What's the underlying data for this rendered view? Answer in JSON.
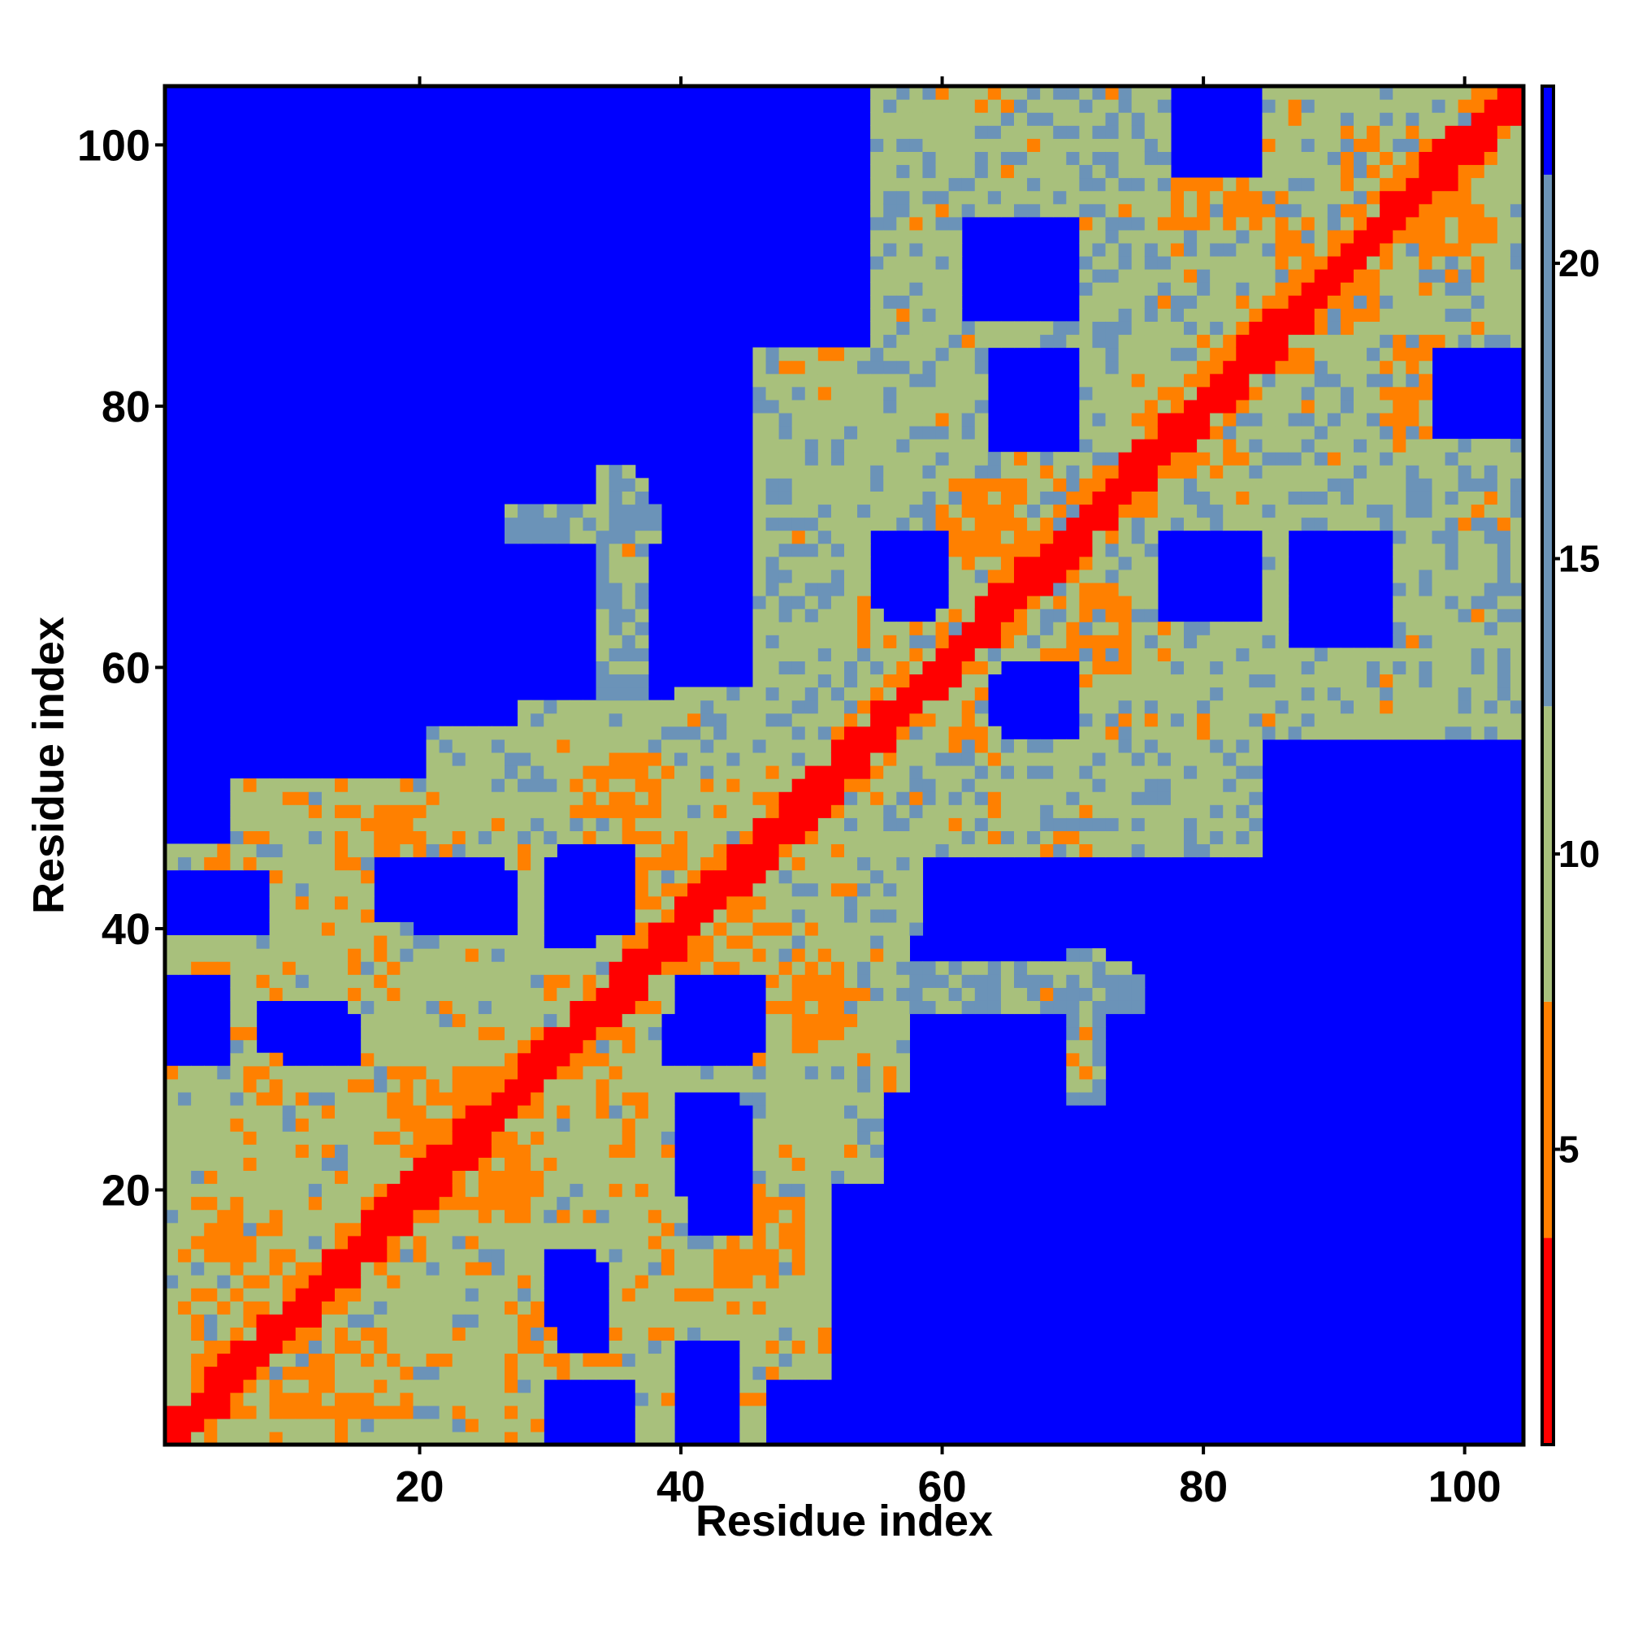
{
  "chart_data": {
    "type": "heatmap",
    "title": "",
    "xlabel": "Residue index",
    "ylabel": "Residue index",
    "n_residues": 104,
    "xlim": [
      1,
      104
    ],
    "ylim": [
      1,
      104
    ],
    "x_ticks": [
      20,
      40,
      60,
      80,
      100
    ],
    "y_ticks": [
      20,
      40,
      60,
      80,
      100
    ],
    "colorbar": {
      "range": [
        0,
        23
      ],
      "ticks": [
        5,
        10,
        15,
        20
      ],
      "bands": [
        {
          "from": 0,
          "to": 3.5,
          "color": "#ff0000"
        },
        {
          "from": 3.5,
          "to": 7.5,
          "color": "#ff8000"
        },
        {
          "from": 7.5,
          "to": 12.5,
          "color": "#a8c07c"
        },
        {
          "from": 12.5,
          "to": 21.5,
          "color": "#6b93b8"
        },
        {
          "from": 21.5,
          "to": 23,
          "color": "#0000ff"
        }
      ]
    },
    "background_color": "#0000ff",
    "diagonal_color": "#ff0000",
    "contact_regions": [
      {
        "x": [
          1,
          52
        ],
        "y": [
          1,
          50
        ],
        "value": 10
      },
      {
        "x": [
          1,
          52
        ],
        "y": [
          1,
          52
        ],
        "value": 11
      },
      {
        "x": [
          1,
          28
        ],
        "y": [
          1,
          55
        ],
        "value": 11
      },
      {
        "x": [
          28,
          58
        ],
        "y": [
          40,
          57
        ],
        "value": 11
      },
      {
        "x": [
          52,
          84
        ],
        "y": [
          46,
          84
        ],
        "value": 11
      },
      {
        "x": [
          67,
          104
        ],
        "y": [
          67,
          104
        ],
        "value": 11
      },
      {
        "x": [
          78,
          104
        ],
        "y": [
          55,
          85
        ],
        "value": 11
      },
      {
        "x": [
          59,
          68
        ],
        "y": [
          80,
          85
        ],
        "value": 12
      },
      {
        "x": [
          58,
          64
        ],
        "y": [
          88,
          100
        ],
        "value": 13
      },
      {
        "x": [
          34,
          37
        ],
        "y": [
          55,
          74
        ],
        "value": 13
      },
      {
        "x": [
          54,
          75
        ],
        "y": [
          34,
          36
        ],
        "value": 13
      },
      {
        "x": [
          70,
          72
        ],
        "y": [
          27,
          38
        ],
        "value": 13
      },
      {
        "x": [
          90,
          99
        ],
        "y": [
          60,
          66
        ],
        "value": 13
      }
    ],
    "contact_holes": [
      {
        "x": [
          1,
          5
        ],
        "y": [
          40,
          44
        ]
      },
      {
        "x": [
          10,
          15
        ],
        "y": [
          30,
          33
        ]
      },
      {
        "x": [
          20,
          27
        ],
        "y": [
          40,
          44
        ]
      },
      {
        "x": [
          31,
          36
        ],
        "y": [
          40,
          46
        ]
      },
      {
        "x": [
          39,
          45
        ],
        "y": [
          30,
          33
        ]
      },
      {
        "x": [
          41,
          45
        ],
        "y": [
          17,
          26
        ]
      },
      {
        "x": [
          31,
          34
        ],
        "y": [
          8,
          14
        ]
      },
      {
        "x": [
          40,
          44
        ],
        "y": [
          1,
          8
        ]
      },
      {
        "x": [
          30,
          36
        ],
        "y": [
          1,
          5
        ]
      },
      {
        "x": [
          55,
          60
        ],
        "y": [
          65,
          70
        ]
      },
      {
        "x": [
          64,
          70
        ],
        "y": [
          77,
          84
        ]
      },
      {
        "x": [
          87,
          94
        ],
        "y": [
          62,
          70
        ]
      },
      {
        "x": [
          64,
          68
        ],
        "y": [
          56,
          59
        ]
      },
      {
        "x": [
          52,
          56
        ],
        "y": [
          1,
          20
        ]
      },
      {
        "x": [
          1,
          5
        ],
        "y": [
          47,
          55
        ]
      },
      {
        "x": [
          98,
          104
        ],
        "y": [
          78,
          84
        ]
      }
    ],
    "close_contacts": [
      {
        "x": [
          3,
          9
        ],
        "y": [
          5,
          19
        ],
        "value": 6
      },
      {
        "x": [
          14,
          20
        ],
        "y": [
          43,
          49
        ],
        "value": 6
      },
      {
        "x": [
          18,
          24
        ],
        "y": [
          26,
          29
        ],
        "value": 6
      },
      {
        "x": [
          24,
          28
        ],
        "y": [
          18,
          24
        ],
        "value": 6
      },
      {
        "x": [
          28,
          32
        ],
        "y": [
          7,
          10
        ],
        "value": 6
      },
      {
        "x": [
          32,
          37
        ],
        "y": [
          49,
          53
        ],
        "value": 6
      },
      {
        "x": [
          37,
          42
        ],
        "y": [
          42,
          46
        ],
        "value": 6
      },
      {
        "x": [
          44,
          49
        ],
        "y": [
          16,
          19
        ],
        "value": 6
      },
      {
        "x": [
          47,
          53
        ],
        "y": [
          33,
          38
        ],
        "value": 6
      },
      {
        "x": [
          54,
          57
        ],
        "y": [
          61,
          64
        ],
        "value": 6
      },
      {
        "x": [
          61,
          65
        ],
        "y": [
          70,
          74
        ],
        "value": 6
      },
      {
        "x": [
          62,
          65
        ],
        "y": [
          54,
          58
        ],
        "value": 6
      },
      {
        "x": [
          69,
          74
        ],
        "y": [
          60,
          66
        ],
        "value": 6
      },
      {
        "x": [
          76,
          82
        ],
        "y": [
          75,
          81
        ],
        "value": 6
      },
      {
        "x": [
          78,
          84
        ],
        "y": [
          94,
          100
        ],
        "value": 6
      },
      {
        "x": [
          86,
          92
        ],
        "y": [
          88,
          94
        ],
        "value": 6
      },
      {
        "x": [
          91,
          97
        ],
        "y": [
          95,
          101
        ],
        "value": 6
      },
      {
        "x": [
          95,
          100
        ],
        "y": [
          78,
          85
        ],
        "value": 6
      },
      {
        "x": [
          84,
          88
        ],
        "y": [
          83,
          87
        ],
        "value": 6
      }
    ]
  }
}
